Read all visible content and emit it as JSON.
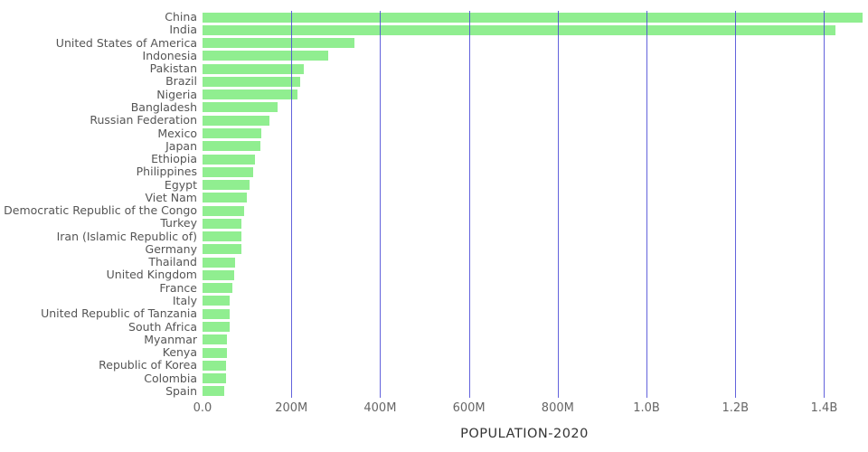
{
  "chart_data": {
    "type": "bar",
    "orientation": "horizontal",
    "title": "",
    "xlabel": "POPULATION-2020",
    "ylabel": "",
    "legend": "none",
    "grid": "vertical",
    "background": "#ffffff",
    "bar_color": "#90ee90",
    "grid_color": "#4747d6",
    "x_max_millions": 1450,
    "x_ticks": [
      {
        "value": 0,
        "label": "0.0"
      },
      {
        "value": 200,
        "label": "200M"
      },
      {
        "value": 400,
        "label": "400M"
      },
      {
        "value": 600,
        "label": "600M"
      },
      {
        "value": 800,
        "label": "800M"
      },
      {
        "value": 1000,
        "label": "1.0B"
      },
      {
        "value": 1200,
        "label": "1.2B"
      },
      {
        "value": 1400,
        "label": "1.4B"
      }
    ],
    "categories": [
      "China",
      "India",
      "United States of America",
      "Indonesia",
      "Pakistan",
      "Brazil",
      "Nigeria",
      "Bangladesh",
      "Russian Federation",
      "Mexico",
      "Japan",
      "Ethiopia",
      "Philippines",
      "Egypt",
      "Viet Nam",
      "Democratic Republic of the Congo",
      "Turkey",
      "Iran (Islamic Republic of)",
      "Germany",
      "Thailand",
      "United Kingdom",
      "France",
      "Italy",
      "United Republic of Tanzania",
      "South Africa",
      "Myanmar",
      "Kenya",
      "Republic of Korea",
      "Colombia",
      "Spain"
    ],
    "values_millions": [
      1439,
      1380,
      331,
      273,
      220,
      212,
      206,
      164,
      146,
      129,
      126,
      115,
      110,
      102,
      97,
      90,
      84,
      84,
      84,
      70,
      68,
      65,
      60,
      60,
      59,
      54,
      54,
      51,
      51,
      47
    ]
  }
}
